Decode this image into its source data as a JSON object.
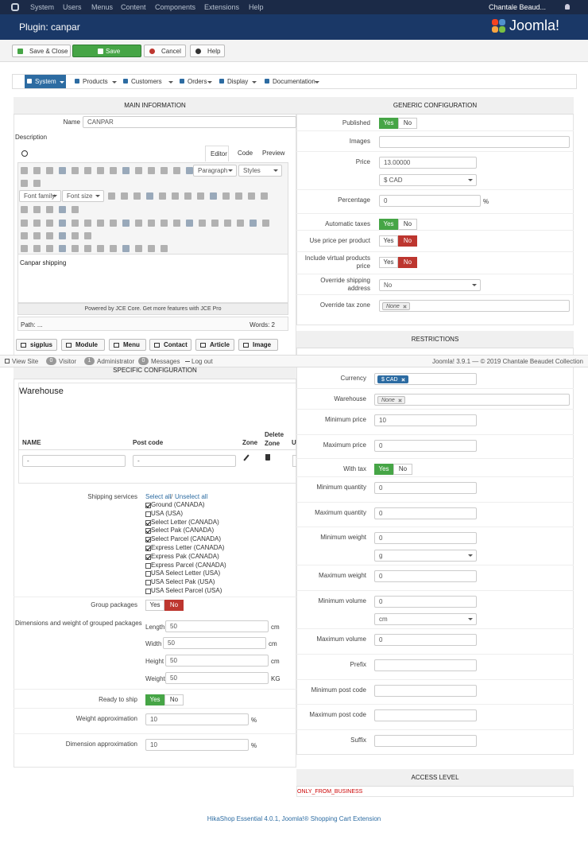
{
  "topbar": {
    "menu": [
      "System",
      "Users",
      "Menus",
      "Content",
      "Components",
      "Extensions",
      "Help"
    ],
    "user": "Chantale Beaud..."
  },
  "header": {
    "title": "Plugin: canpar",
    "brand": "Joomla!"
  },
  "toolbar": [
    "Save & Close",
    "Save",
    "Cancel",
    "Help"
  ],
  "submenu": [
    "System",
    "Products",
    "Customers",
    "Orders",
    "Display",
    "Documentation"
  ],
  "main_information": {
    "title": "MAIN INFORMATION",
    "name_label": "Name",
    "name_value": "CANPAR",
    "description_label": "Description",
    "editor": {
      "tabs": [
        "Editor",
        "Code",
        "Preview"
      ],
      "format": "Paragraph",
      "styles": "Styles",
      "font_family": "Font family",
      "font_size": "Font size",
      "content": "Canpar shipping",
      "powered_by": "Powered by JCE Core. Get more features with JCE Pro",
      "path": "Path: ...",
      "words": "Words: 2"
    },
    "buttons": [
      "sigplus",
      "Module",
      "Menu",
      "Contact",
      "Article",
      "Image"
    ]
  },
  "status_bar": {
    "view_site": "View Site",
    "visitors": {
      "count": 0,
      "label": "Visitor"
    },
    "administrators": {
      "count": 1,
      "label": "Administrator"
    },
    "messages": {
      "count": 0,
      "label": "Messages"
    },
    "logout": "Log out",
    "copyright": "Joomla! 3.9.1  —  © 2019 Chantale Beaudet Collection"
  },
  "specific_configuration": {
    "title": "SPECIFIC CONFIGURATION",
    "warehouse_title": "Warehouse",
    "columns": [
      "NAME",
      "Post code",
      "Zone",
      "Delete Zone",
      "U"
    ],
    "row": {
      "name": "-",
      "post_code": "-"
    },
    "shipping_services": {
      "label": "Shipping services",
      "select_all": "Select all",
      "separator": "/",
      "unselect_all": "Unselect all",
      "items": [
        {
          "name": "Ground (CANADA)",
          "checked": true
        },
        {
          "name": "USA (USA)",
          "checked": false
        },
        {
          "name": "Select Letter (CANADA)",
          "checked": true
        },
        {
          "name": "Select Pak (CANADA)",
          "checked": true
        },
        {
          "name": "Select Parcel (CANADA)",
          "checked": true
        },
        {
          "name": "Express Letter (CANADA)",
          "checked": true
        },
        {
          "name": "Express Pak (CANADA)",
          "checked": true
        },
        {
          "name": "Express Parcel (CANADA)",
          "checked": false
        },
        {
          "name": "USA Select Letter (USA)",
          "checked": false
        },
        {
          "name": "USA Select Pak (USA)",
          "checked": false
        },
        {
          "name": "USA Select Parcel (USA)",
          "checked": false
        }
      ]
    },
    "dimensions": {
      "label": "Dimensions and weight of grouped packages",
      "items": [
        {
          "label": "Length",
          "value": "50",
          "unit": "cm"
        },
        {
          "label": "Width",
          "value": "50",
          "unit": "cm"
        },
        {
          "label": "Height",
          "value": "50",
          "unit": "cm"
        },
        {
          "label": "Weight",
          "value": "50",
          "unit": "KG"
        }
      ]
    },
    "fields": [
      {
        "label": "Group packages",
        "kind": "toggle",
        "yes": "Yes",
        "no": "No",
        "selected": "no"
      },
      {
        "label": "Ready to ship",
        "kind": "toggle",
        "yes": "Yes",
        "no": "No",
        "selected": "yes"
      },
      {
        "label": "Weight approximation",
        "kind": "text",
        "value": "10",
        "unit": "%"
      },
      {
        "label": "Dimension approximation",
        "kind": "text",
        "value": "10",
        "unit": "%"
      }
    ]
  },
  "generic_configuration": {
    "title": "GENERIC CONFIGURATION",
    "fields": [
      {
        "label": "Published",
        "kind": "toggle",
        "yes": "Yes",
        "no": "No",
        "selected": "yes"
      },
      {
        "label": "Images",
        "kind": "text"
      },
      {
        "label": "Price",
        "kind": "text",
        "value": "13.00000",
        "extra_select": "$ CAD"
      },
      {
        "label": "Percentage",
        "kind": "text",
        "value": "0",
        "unit": "%"
      },
      {
        "label": "Automatic taxes",
        "kind": "toggle",
        "yes": "Yes",
        "no": "No",
        "selected": "yes"
      },
      {
        "label": "Use price per product",
        "kind": "toggle",
        "yes": "Yes",
        "no": "No",
        "selected": "no"
      },
      {
        "label": "Include virtual products price",
        "kind": "toggle",
        "yes": "Yes",
        "no": "No",
        "selected": "no"
      },
      {
        "label": "Override shipping address",
        "kind": "select",
        "value": "No"
      },
      {
        "label": "Override tax zone",
        "kind": "tags",
        "tag": "None",
        "tag_color": "#eeeeee"
      }
    ]
  },
  "restrictions": {
    "title": "RESTRICTIONS",
    "fields": [
      {
        "label": "Currency",
        "kind": "tags",
        "tag": "$ CAD",
        "tag_color": "#2d6ca2"
      },
      {
        "label": "Warehouse",
        "kind": "tags",
        "tag": "None",
        "tag_color": "#eeeeee"
      },
      {
        "label": "Minimum price",
        "kind": "text",
        "value": "10"
      },
      {
        "label": "Maximum price",
        "kind": "text",
        "value": "0"
      },
      {
        "label": "With tax",
        "kind": "toggle",
        "yes": "Yes",
        "no": "No",
        "selected": "yes"
      },
      {
        "label": "Minimum quantity",
        "kind": "text",
        "value": "0"
      },
      {
        "label": "Maximum quantity",
        "kind": "text",
        "value": "0"
      },
      {
        "label": "Minimum weight",
        "kind": "text",
        "value": "0",
        "extra_select": "g"
      },
      {
        "label": "Maximum weight",
        "kind": "text",
        "value": "0"
      },
      {
        "label": "Minimum volume",
        "kind": "text",
        "value": "0",
        "extra_select": "cm"
      },
      {
        "label": "Maximum volume",
        "kind": "text",
        "value": "0"
      },
      {
        "label": "Prefix",
        "kind": "text"
      },
      {
        "label": "Minimum post code",
        "kind": "text"
      },
      {
        "label": "Maximum post code",
        "kind": "text"
      },
      {
        "label": "Suffix",
        "kind": "text"
      }
    ]
  },
  "access_level": {
    "title": "ACCESS LEVEL",
    "value": "ONLY_FROM_BUSINESS"
  },
  "footer": "HikaShop Essential 4.0.1, Joomla!® Shopping Cart Extension"
}
